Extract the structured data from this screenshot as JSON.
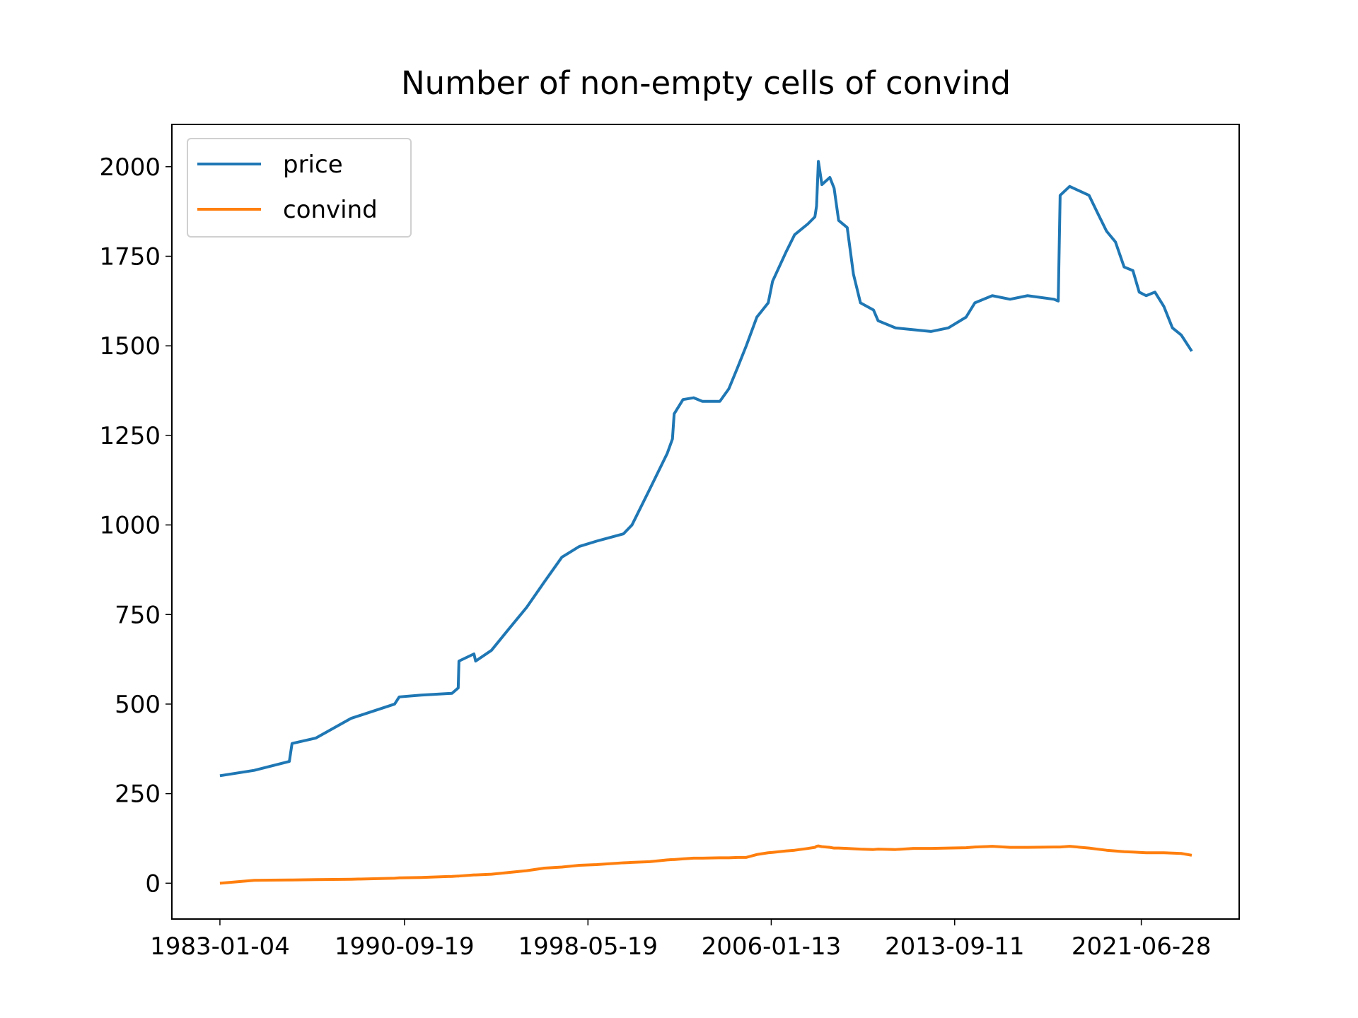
{
  "chart_data": {
    "type": "line",
    "title": "Number of non-empty cells of convind",
    "x": [
      "1983-01-04",
      "1984-06-10",
      "1985-11-28",
      "1986-01-08",
      "1987-01-04",
      "1988-06-25",
      "1990-04-22",
      "1990-07-01",
      "1991-05-30",
      "1992-09-13",
      "1992-12-17",
      "1992-12-28",
      "1993-08-14",
      "1993-09-09",
      "1994-05-08",
      "1995-01-30",
      "1995-10-27",
      "1996-07-19",
      "1997-04-16",
      "1998-01-08",
      "1998-10-01",
      "1999-11-10",
      "2000-03-21",
      "2000-12-17",
      "2001-09-10",
      "2001-11-28",
      "2001-12-24",
      "2002-05-08",
      "2002-10-16",
      "2003-02-28",
      "2003-11-21",
      "2004-04-06",
      "2004-08-19",
      "2004-12-28",
      "2005-06-07",
      "2005-11-28",
      "2006-02-02",
      "2006-08-22",
      "2007-01-04",
      "2007-07-24",
      "2007-11-10",
      "2007-12-05",
      "2008-01-02",
      "2008-02-25",
      "2008-06-25",
      "2008-08-29",
      "2008-11-06",
      "2009-03-17",
      "2009-06-20",
      "2009-10-05",
      "2010-04-22",
      "2010-07-01",
      "2011-03-25",
      "2011-12-20",
      "2012-09-13",
      "2013-06-07",
      "2014-03-04",
      "2014-07-16",
      "2015-04-08",
      "2016-01-04",
      "2016-09-27",
      "2017-11-03",
      "2018-01-08",
      "2018-02-06",
      "2018-07-01",
      "2019-04-23",
      "2019-09-02",
      "2020-01-15",
      "2020-05-30",
      "2020-10-09",
      "2021-02-20",
      "2021-05-27",
      "2021-09-10",
      "2022-01-22",
      "2022-06-07",
      "2022-10-16",
      "2023-02-28",
      "2023-08-07"
    ],
    "series": [
      {
        "name": "price",
        "color": "#1f77b4",
        "values": [
          300,
          315,
          340,
          390,
          405,
          460,
          500,
          520,
          525,
          530,
          545,
          620,
          640,
          620,
          650,
          710,
          770,
          840,
          910,
          940,
          955,
          975,
          1000,
          1100,
          1200,
          1240,
          1310,
          1350,
          1355,
          1345,
          1345,
          1380,
          1440,
          1500,
          1580,
          1620,
          1680,
          1760,
          1810,
          1840,
          1860,
          1890,
          2015,
          1950,
          1970,
          1940,
          1850,
          1830,
          1700,
          1620,
          1600,
          1570,
          1550,
          1545,
          1540,
          1550,
          1580,
          1620,
          1640,
          1630,
          1640,
          1630,
          1625,
          1920,
          1945,
          1920,
          1870,
          1820,
          1790,
          1720,
          1710,
          1650,
          1640,
          1650,
          1610,
          1550,
          1530,
          1485
        ]
      },
      {
        "name": "convind",
        "color": "#ff7f0e",
        "values": [
          0,
          8,
          9,
          9,
          10,
          11,
          14,
          15,
          16,
          19,
          20,
          20,
          23,
          23,
          25,
          30,
          35,
          42,
          45,
          50,
          52,
          57,
          58,
          60,
          65,
          66,
          66,
          68,
          70,
          70,
          71,
          71,
          72,
          72,
          80,
          85,
          86,
          90,
          92,
          97,
          100,
          103,
          104,
          102,
          100,
          98,
          98,
          97,
          96,
          95,
          94,
          95,
          94,
          97,
          97,
          98,
          99,
          101,
          103,
          100,
          100,
          101,
          101,
          101,
          103,
          98,
          95,
          92,
          90,
          88,
          87,
          86,
          85,
          85,
          85,
          84,
          83,
          78
        ]
      }
    ],
    "xlim": [
      "1981-01-01",
      "2025-07-30"
    ],
    "xticks": [
      "1983-01-04",
      "1990-09-19",
      "1998-05-19",
      "2006-01-13",
      "2013-09-11",
      "2021-06-28"
    ],
    "ylim": [
      -100,
      2118
    ],
    "yticks": [
      0,
      250,
      500,
      750,
      1000,
      1250,
      1500,
      1750,
      2000
    ],
    "grid": false,
    "legend": "upper-left"
  }
}
